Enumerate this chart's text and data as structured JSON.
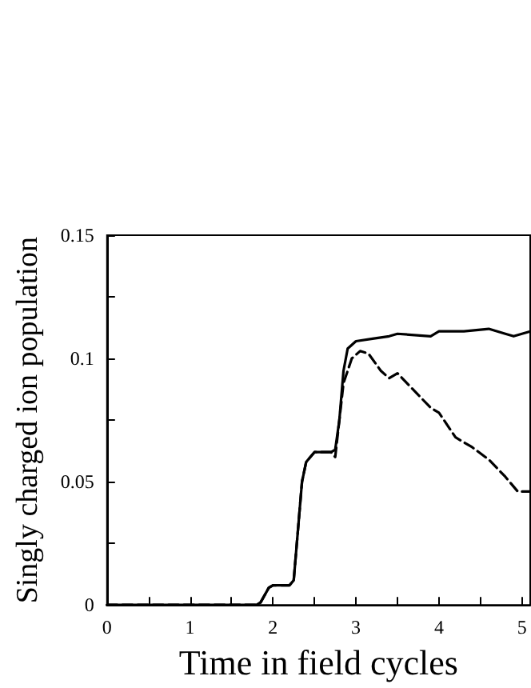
{
  "chart_data": {
    "type": "line",
    "xlabel": "Time in field cycles",
    "ylabel": "Singly charged ion population",
    "xlim": [
      0,
      5.1
    ],
    "ylim": [
      0,
      0.15
    ],
    "xticks": [
      0,
      {
        "value": 0.5,
        "label": null
      },
      1,
      {
        "value": 1.5,
        "label": null
      },
      2,
      {
        "value": 2.5,
        "label": null
      },
      3,
      {
        "value": 3.5,
        "label": null
      },
      4,
      {
        "value": 4.5,
        "label": null
      },
      5
    ],
    "yticks": [
      0,
      {
        "value": 0.025,
        "label": null
      },
      0.05,
      {
        "value": 0.075,
        "label": null
      },
      0.1,
      {
        "value": 0.125,
        "label": null
      },
      0.15
    ],
    "grid": false,
    "marker": "none",
    "series": [
      {
        "color": "#000000",
        "line_style": "solid",
        "x": [
          0,
          1.8,
          1.85,
          1.95,
          2.0,
          2.2,
          2.25,
          2.3,
          2.35,
          2.4,
          2.5,
          2.7,
          2.75,
          2.8,
          2.85,
          2.9,
          3.0,
          3.2,
          3.4,
          3.5,
          3.9,
          4.0,
          4.3,
          4.6,
          4.8,
          4.9,
          5.1
        ],
        "values": [
          0,
          0,
          0.001,
          0.007,
          0.008,
          0.008,
          0.01,
          0.03,
          0.05,
          0.058,
          0.062,
          0.062,
          0.063,
          0.075,
          0.095,
          0.104,
          0.107,
          0.108,
          0.109,
          0.11,
          0.109,
          0.111,
          0.111,
          0.112,
          0.11,
          0.109,
          0.111
        ]
      },
      {
        "color": "#000000",
        "line_style": "dashed",
        "x": [
          0,
          1.8,
          1.85,
          1.95,
          2.0,
          2.2,
          2.25,
          2.3,
          2.35,
          2.4,
          2.5,
          2.7,
          2.75,
          2.85,
          2.95,
          3.05,
          3.15,
          3.3,
          3.4,
          3.5,
          3.7,
          3.9,
          4.0,
          4.2,
          4.4,
          4.6,
          4.8,
          4.95,
          5.1
        ],
        "values": [
          0,
          0,
          0.001,
          0.007,
          0.008,
          0.008,
          0.01,
          0.03,
          0.05,
          0.058,
          0.062,
          0.062,
          0.06,
          0.09,
          0.1,
          0.103,
          0.102,
          0.095,
          0.092,
          0.094,
          0.087,
          0.08,
          0.078,
          0.068,
          0.064,
          0.059,
          0.052,
          0.046,
          0.046
        ]
      }
    ]
  }
}
